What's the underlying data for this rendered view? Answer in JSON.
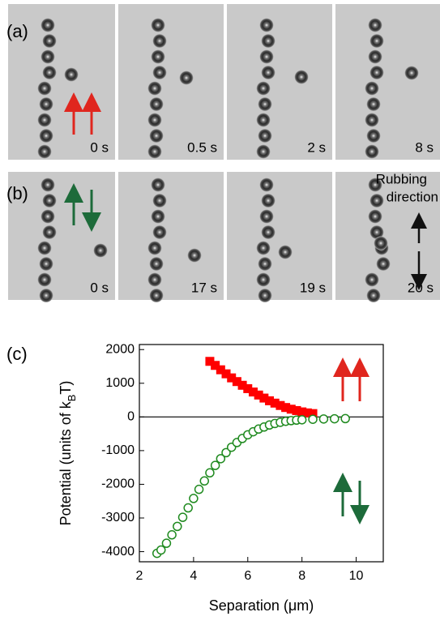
{
  "panels": {
    "a": {
      "label": "(a)",
      "times": [
        "0 s",
        "0.5 s",
        "2 s",
        "8 s"
      ]
    },
    "b": {
      "label": "(b)",
      "times": [
        "0 s",
        "17 s",
        "19 s",
        "20 s"
      ],
      "note": [
        "Rubbing",
        "direction"
      ]
    }
  },
  "chart_data": {
    "type": "scatter",
    "label": "(c)",
    "xlabel": "Separation (μm)",
    "ylabel": [
      "Potential (units of k",
      "B",
      "T)"
    ],
    "xlim": [
      2,
      11
    ],
    "xticks": [
      2,
      4,
      6,
      8,
      10
    ],
    "ylim": [
      -4300,
      2150
    ],
    "yticks": [
      2000,
      1000,
      0,
      -1000,
      -2000,
      -3000,
      -4000
    ],
    "reference_line": 0,
    "series": [
      {
        "marker": "square",
        "color": "#ff0000",
        "x": [
          4.6,
          4.8,
          5.0,
          5.2,
          5.4,
          5.6,
          5.8,
          6.0,
          6.2,
          6.4,
          6.6,
          6.8,
          7.0,
          7.2,
          7.4,
          7.6,
          7.8,
          8.0,
          8.2,
          8.4
        ],
        "values": [
          1650,
          1530,
          1400,
          1280,
          1160,
          1050,
          940,
          840,
          740,
          650,
          560,
          480,
          410,
          340,
          280,
          230,
          190,
          150,
          120,
          100
        ]
      },
      {
        "marker": "circle",
        "color": "#1f8a1f",
        "x": [
          2.65,
          2.8,
          3.0,
          3.2,
          3.4,
          3.6,
          3.8,
          4.0,
          4.2,
          4.4,
          4.6,
          4.8,
          5.0,
          5.2,
          5.4,
          5.6,
          5.8,
          6.0,
          6.2,
          6.4,
          6.6,
          6.8,
          7.0,
          7.2,
          7.4,
          7.6,
          7.8,
          8.0,
          8.4,
          8.8,
          9.2,
          9.6
        ],
        "values": [
          -4050,
          -3950,
          -3750,
          -3500,
          -3250,
          -2980,
          -2700,
          -2420,
          -2150,
          -1900,
          -1660,
          -1440,
          -1240,
          -1060,
          -900,
          -760,
          -640,
          -530,
          -440,
          -360,
          -300,
          -240,
          -195,
          -160,
          -130,
          -110,
          -95,
          -85,
          -70,
          -60,
          -55,
          -50
        ]
      }
    ]
  }
}
